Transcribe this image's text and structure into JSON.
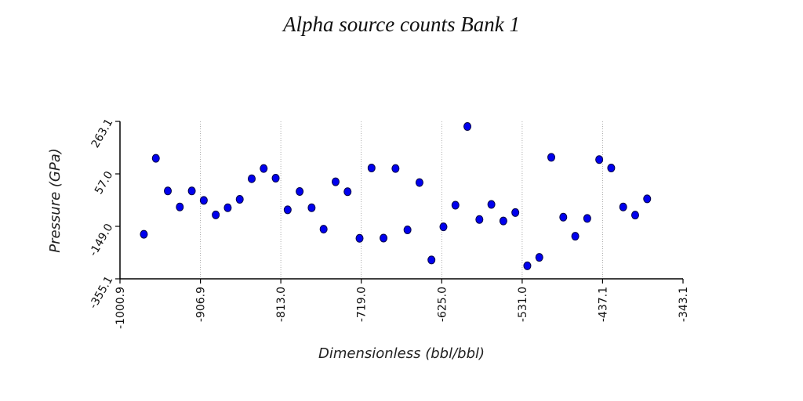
{
  "chart_data": {
    "type": "scatter",
    "title": "Alpha source counts Bank 1",
    "xlabel": "Dimensionless (bbl/bbl)",
    "ylabel": "Pressure (GPa)",
    "xlim": [
      -1000.9,
      -343.1
    ],
    "ylim": [
      -355.1,
      263.1
    ],
    "x_ticks": [
      "-1000.9",
      "-906.9",
      "-813.0",
      "-719.0",
      "-625.0",
      "-531.0",
      "-437.1",
      "-343.1"
    ],
    "y_ticks": [
      "-355.1",
      "-149.0",
      "57.0",
      "263.1"
    ],
    "grid": "vertical dotted at x ticks",
    "marker_color": "#0000ee",
    "marker_edge": "#000044",
    "series": [
      {
        "points": [
          [
            -973,
            -180
          ],
          [
            -959,
            118
          ],
          [
            -945,
            -10
          ],
          [
            -931,
            -73
          ],
          [
            -917,
            -10
          ],
          [
            -903,
            -47
          ],
          [
            -889,
            -104
          ],
          [
            -875,
            -76
          ],
          [
            -861,
            -43
          ],
          [
            -847,
            38
          ],
          [
            -833,
            78
          ],
          [
            -819,
            40
          ],
          [
            -805,
            -84
          ],
          [
            -791,
            -12
          ],
          [
            -777,
            -76
          ],
          [
            -763,
            -160
          ],
          [
            -749,
            26
          ],
          [
            -735,
            -13
          ],
          [
            -721,
            -196
          ],
          [
            -707,
            80
          ],
          [
            -693,
            -195
          ],
          [
            -679,
            78
          ],
          [
            -665,
            -163
          ],
          [
            -651,
            23
          ],
          [
            -637,
            -281
          ],
          [
            -623,
            -151
          ],
          [
            -609,
            -66
          ],
          [
            -595,
            243
          ],
          [
            -581,
            -122
          ],
          [
            -567,
            -63
          ],
          [
            -553,
            -128
          ],
          [
            -539,
            -95
          ],
          [
            -525,
            -304
          ],
          [
            -511,
            -271
          ],
          [
            -497,
            122
          ],
          [
            -483,
            -113
          ],
          [
            -469,
            -188
          ],
          [
            -455,
            -118
          ],
          [
            -441,
            113
          ],
          [
            -427,
            80
          ],
          [
            -413,
            -73
          ],
          [
            -399,
            -105
          ],
          [
            -385,
            -41
          ]
        ]
      }
    ]
  }
}
